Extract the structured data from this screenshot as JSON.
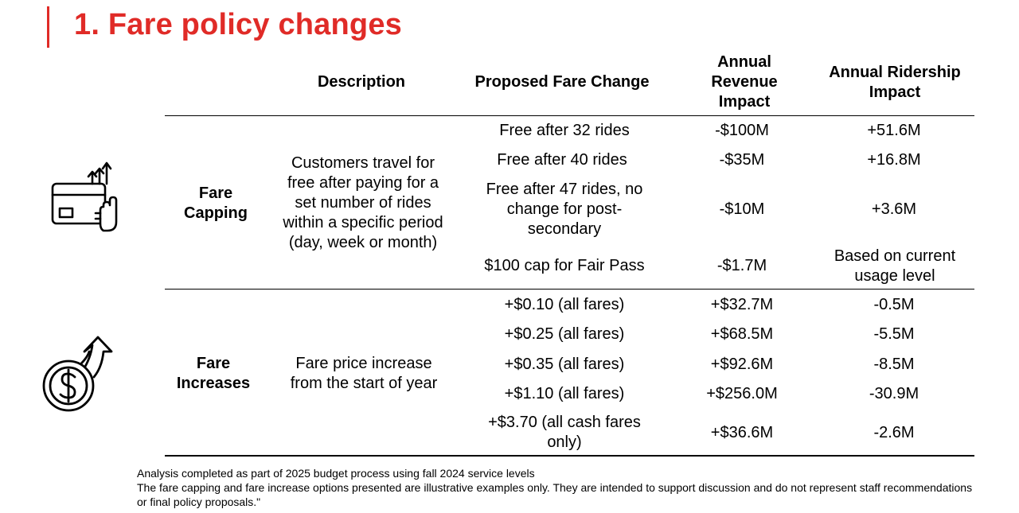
{
  "title": "1.  Fare policy changes",
  "header": {
    "description": "Description",
    "proposed": "Proposed Fare Change",
    "revenue": "Annual Revenue Impact",
    "ridership": "Annual Ridership Impact"
  },
  "capping": {
    "label": "Fare Capping",
    "description": "Customers travel for free after paying for a set number of rides within a specific period (day, week or month)",
    "rows": [
      {
        "change": "Free after 32 rides",
        "revenue": "-$100M",
        "ridership": "+51.6M"
      },
      {
        "change": "Free after 40 rides",
        "revenue": "-$35M",
        "ridership": "+16.8M"
      },
      {
        "change": "Free after 47 rides, no change for post-secondary",
        "revenue": "-$10M",
        "ridership": "+3.6M"
      },
      {
        "change": "$100 cap for Fair Pass",
        "revenue": "-$1.7M",
        "ridership": "Based on current usage level"
      }
    ]
  },
  "increases": {
    "label": "Fare Increases",
    "description": "Fare price increase from the start of year",
    "rows": [
      {
        "change": "+$0.10 (all fares)",
        "revenue": "+$32.7M",
        "ridership": "-0.5M"
      },
      {
        "change": "+$0.25 (all fares)",
        "revenue": "+$68.5M",
        "ridership": "-5.5M"
      },
      {
        "change": "+$0.35 (all fares)",
        "revenue": "+$92.6M",
        "ridership": "-8.5M"
      },
      {
        "change": "+$1.10 (all fares)",
        "revenue": "+$256.0M",
        "ridership": "-30.9M"
      },
      {
        "change": "+$3.70 (all cash fares only)",
        "revenue": "+$36.6M",
        "ridership": "-2.6M"
      }
    ]
  },
  "footnotes": [
    "Analysis completed as part of 2025 budget process using fall 2024 service levels",
    "The fare capping and fare increase options presented are illustrative examples only. They are intended to support discussion and do not represent staff recommendations or final policy proposals.\""
  ],
  "colors": {
    "accent": "#e02b27"
  }
}
